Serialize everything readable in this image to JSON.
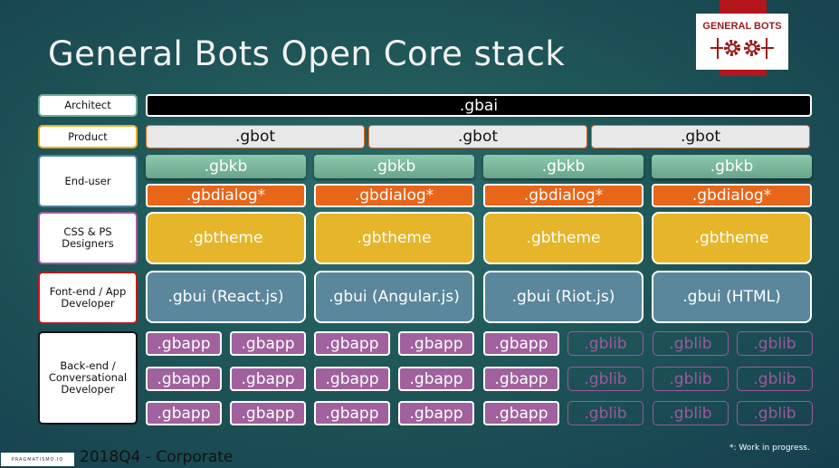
{
  "title": "General Bots Open Core stack",
  "logo": {
    "text": "GENERAL BOTS",
    "color": "#9b1b1b"
  },
  "labels": [
    {
      "text": "Architect",
      "border": "#6fae96"
    },
    {
      "text": "Product",
      "border": "#e6b125"
    },
    {
      "text": "End-user",
      "border": "#4f8596"
    },
    {
      "text": "CSS & PS Designers",
      "border": "#a05ca0"
    },
    {
      "text": "Font-end / App Developer",
      "border": "#c0161b"
    },
    {
      "text": "Back-end / Conversational Developer",
      "border": "#111111"
    }
  ],
  "layers": {
    "gbai": ".gbai",
    "gbot": [
      ".gbot",
      ".gbot",
      ".gbot"
    ],
    "gbkb": [
      ".gbkb",
      ".gbkb",
      ".gbkb",
      ".gbkb"
    ],
    "gbdialog": [
      ".gbdialog*",
      ".gbdialog*",
      ".gbdialog*",
      ".gbdialog*"
    ],
    "gbtheme": [
      ".gbtheme",
      ".gbtheme",
      ".gbtheme",
      ".gbtheme"
    ],
    "gbui": [
      ".gbui (React.js)",
      ".gbui (Angular.js)",
      ".gbui (Riot.js)",
      ".gbui (HTML)"
    ],
    "backend_rows": [
      [
        ".gbapp",
        ".gbapp",
        ".gbapp",
        ".gbapp",
        ".gbapp",
        ".gblib",
        ".gblib",
        ".gblib"
      ],
      [
        ".gbapp",
        ".gbapp",
        ".gbapp",
        ".gbapp",
        ".gbapp",
        ".gblib",
        ".gblib",
        ".gblib"
      ],
      [
        ".gbapp",
        ".gbapp",
        ".gbapp",
        ".gbapp",
        ".gbapp",
        ".gblib",
        ".gblib",
        ".gblib"
      ]
    ]
  },
  "colors": {
    "gbai": "#000000",
    "gbot": "#e8e8e8",
    "gbkb": "#7fbb9f",
    "gbdialog": "#e8661a",
    "gbtheme": "#e6b52a",
    "gbui": "#5a879b",
    "gbapp": "#a0619e"
  },
  "footer": {
    "period": "2018Q4 - Corporate",
    "brand": "PRAGMATISMO.IO",
    "note": "*: Work in progress."
  }
}
